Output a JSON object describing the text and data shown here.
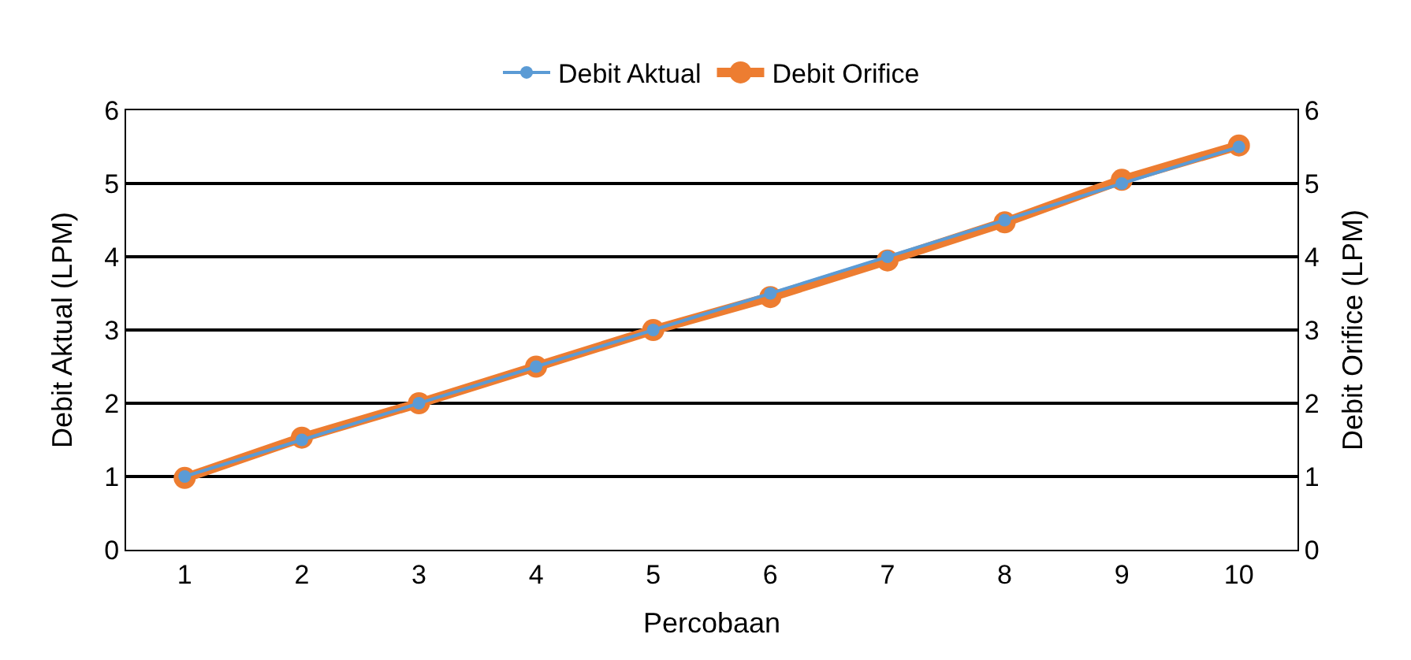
{
  "chart_data": {
    "type": "line",
    "xlabel": "Percobaan",
    "ylabel": "Debit Aktual (LPM)",
    "y2label": "Debit Orifice (LPM)",
    "categories": [
      "1",
      "2",
      "3",
      "4",
      "5",
      "6",
      "7",
      "8",
      "9",
      "10"
    ],
    "series": [
      {
        "name": "Debit Aktual",
        "color": "#5b9bd5",
        "values": [
          1,
          1.5,
          2,
          2.5,
          3,
          3.5,
          4,
          4.5,
          5,
          5.5
        ]
      },
      {
        "name": "Debit Orifice",
        "color": "#ed7d31",
        "axis": "y2",
        "values": [
          0.98,
          1.53,
          2.0,
          2.5,
          3.0,
          3.45,
          3.95,
          4.47,
          5.05,
          5.52
        ]
      }
    ],
    "ylim": [
      0,
      6
    ],
    "yticks": [
      0,
      1,
      2,
      3,
      4,
      5,
      6
    ],
    "y2lim": [
      0,
      6
    ],
    "y2ticks": [
      0,
      1,
      2,
      3,
      4,
      5,
      6
    ],
    "grid": "y",
    "legend": "top",
    "marker": "circle",
    "line_style": "solid"
  }
}
